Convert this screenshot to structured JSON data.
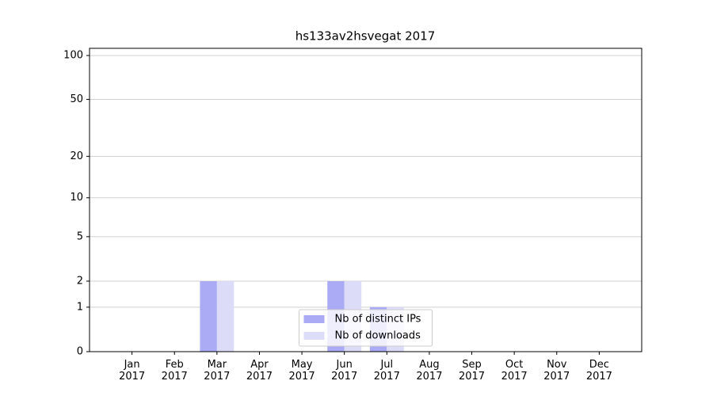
{
  "chart_data": {
    "type": "bar",
    "title": "hs133av2hsvegat 2017",
    "categories": [
      "Jan 2017",
      "Feb 2017",
      "Mar 2017",
      "Apr 2017",
      "May 2017",
      "Jun 2017",
      "Jul 2017",
      "Aug 2017",
      "Sep 2017",
      "Oct 2017",
      "Nov 2017",
      "Dec 2017"
    ],
    "series": [
      {
        "name": "Nb of distinct IPs",
        "color": "#aaaaf5",
        "values": [
          0,
          0,
          2,
          0,
          0,
          2,
          1,
          0,
          0,
          0,
          0,
          0
        ]
      },
      {
        "name": "Nb of downloads",
        "color": "#dcdcf8",
        "values": [
          0,
          0,
          2,
          0,
          0,
          2,
          1,
          0,
          0,
          0,
          0,
          0
        ]
      }
    ],
    "yscale": "log1p",
    "ylim": [
      0,
      112
    ],
    "yticks": [
      0,
      1,
      2,
      5,
      10,
      20,
      50,
      100
    ],
    "grid": true,
    "legend": "lower center"
  }
}
